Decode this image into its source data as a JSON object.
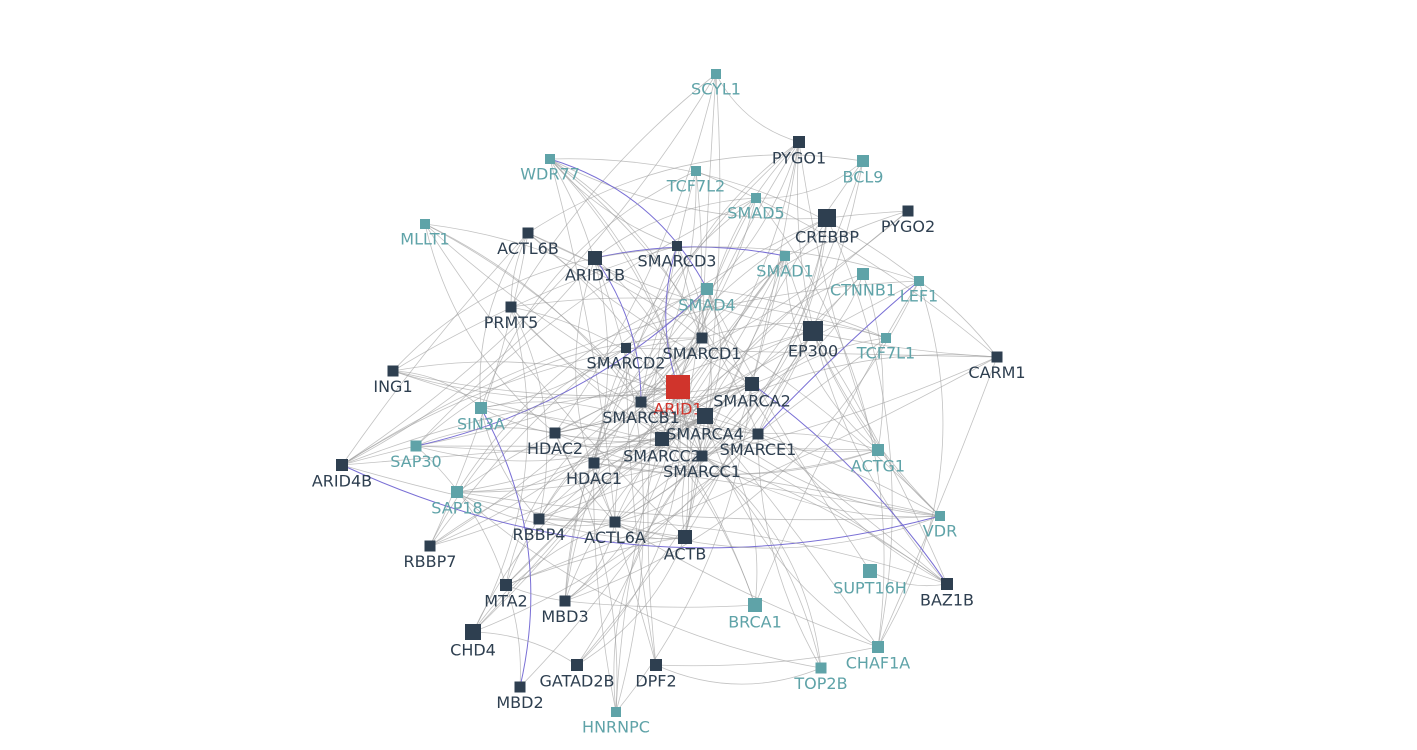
{
  "nodes": [
    {
      "label": "SCYL1",
      "color": "#5fa3a8"
    },
    {
      "label": "PYGO1",
      "color": "#2e3f50"
    },
    {
      "label": "BCL9",
      "color": "#5fa3a8"
    },
    {
      "label": "WDR77",
      "color": "#5fa3a8"
    },
    {
      "label": "TCF7L2",
      "color": "#5fa3a8"
    },
    {
      "label": "SMAD5",
      "color": "#5fa3a8"
    },
    {
      "label": "CREBBP",
      "color": "#2e3f50"
    },
    {
      "label": "PYGO2",
      "color": "#2e3f50"
    },
    {
      "label": "MLLT1",
      "color": "#5fa3a8"
    },
    {
      "label": "ACTL6B",
      "color": "#2e3f50"
    },
    {
      "label": "ARID1B",
      "color": "#2e3f50"
    },
    {
      "label": "SMARCD3",
      "color": "#2e3f50"
    },
    {
      "label": "SMAD1",
      "color": "#5fa3a8"
    },
    {
      "label": "CTNNB1",
      "color": "#5fa3a8"
    },
    {
      "label": "LEF1",
      "color": "#5fa3a8"
    },
    {
      "label": "SMAD4",
      "color": "#5fa3a8"
    },
    {
      "label": "PRMT5",
      "color": "#2e3f50"
    },
    {
      "label": "EP300",
      "color": "#2e3f50"
    },
    {
      "label": "TCF7L1",
      "color": "#5fa3a8"
    },
    {
      "label": "SMARCD1",
      "color": "#2e3f50"
    },
    {
      "label": "CARM1",
      "color": "#2e3f50"
    },
    {
      "label": "SMARCD2",
      "color": "#2e3f50"
    },
    {
      "label": "ING1",
      "color": "#2e3f50"
    },
    {
      "label": "ARID1",
      "color": "#d0342c"
    },
    {
      "label": "SMARCA2",
      "color": "#2e3f50"
    },
    {
      "label": "SMARCB1",
      "color": "#2e3f50"
    },
    {
      "label": "SIN3A",
      "color": "#5fa3a8"
    },
    {
      "label": "SMARCA4",
      "color": "#2e3f50"
    },
    {
      "label": "SMARCE1",
      "color": "#2e3f50"
    },
    {
      "label": "HDAC2",
      "color": "#2e3f50"
    },
    {
      "label": "SAP30",
      "color": "#5fa3a8"
    },
    {
      "label": "SMARCC2",
      "color": "#2e3f50"
    },
    {
      "label": "ACTG1",
      "color": "#5fa3a8"
    },
    {
      "label": "SMARCC1",
      "color": "#2e3f50"
    },
    {
      "label": "HDAC1",
      "color": "#2e3f50"
    },
    {
      "label": "ARID4B",
      "color": "#2e3f50"
    },
    {
      "label": "SAP18",
      "color": "#5fa3a8"
    },
    {
      "label": "VDR",
      "color": "#5fa3a8"
    },
    {
      "label": "RBBP4",
      "color": "#2e3f50"
    },
    {
      "label": "ACTL6A",
      "color": "#2e3f50"
    },
    {
      "label": "ACTB",
      "color": "#2e3f50"
    },
    {
      "label": "RBBP7",
      "color": "#2e3f50"
    },
    {
      "label": "SUPT16H",
      "color": "#5fa3a8"
    },
    {
      "label": "BAZ1B",
      "color": "#2e3f50"
    },
    {
      "label": "MTA2",
      "color": "#2e3f50"
    },
    {
      "label": "MBD3",
      "color": "#2e3f50"
    },
    {
      "label": "BRCA1",
      "color": "#5fa3a8"
    },
    {
      "label": "CHD4",
      "color": "#2e3f50"
    },
    {
      "label": "CHAF1A",
      "color": "#5fa3a8"
    },
    {
      "label": "GATAD2B",
      "color": "#2e3f50"
    },
    {
      "label": "DPF2",
      "color": "#2e3f50"
    },
    {
      "label": "TOP2B",
      "color": "#5fa3a8"
    },
    {
      "label": "MBD2",
      "color": "#2e3f50"
    },
    {
      "label": "HNRNPC",
      "color": "#5fa3a8"
    }
  ]
}
